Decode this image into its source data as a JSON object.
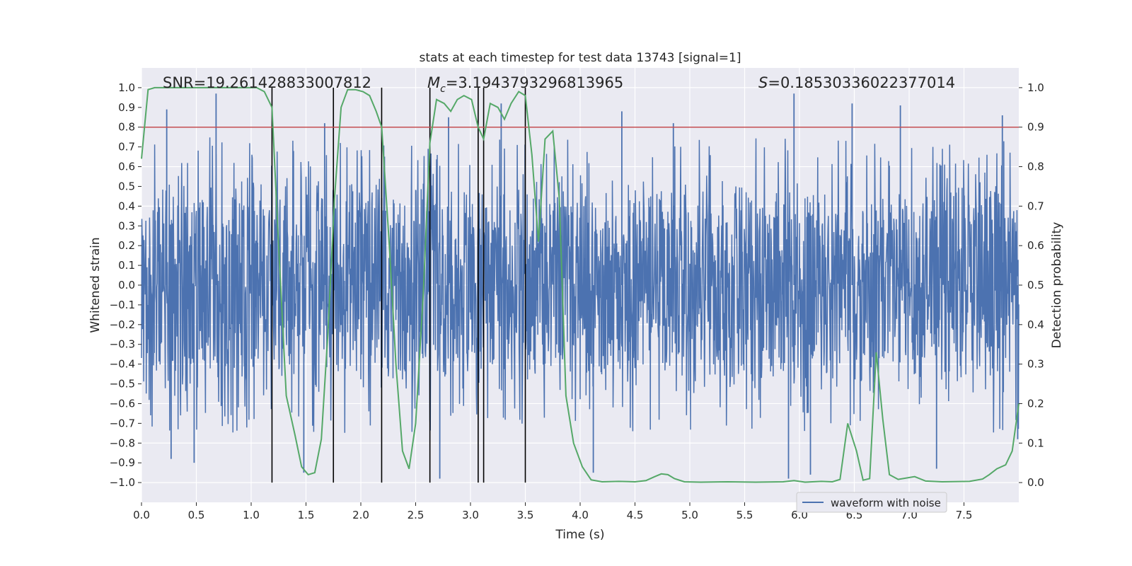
{
  "chart_data": {
    "type": "line",
    "title": "stats at each timestep for test data 13743 [signal=1]",
    "xlabel": "Time (s)",
    "ylabel": "Whitened strain",
    "ylabel_right": "Detection probability",
    "xlim": [
      0.0,
      8.0
    ],
    "ylim": [
      -1.1,
      1.1
    ],
    "ylim_right": [
      -0.05,
      1.05
    ],
    "x_ticks": [
      0.0,
      0.5,
      1.0,
      1.5,
      2.0,
      2.5,
      3.0,
      3.5,
      4.0,
      4.5,
      5.0,
      5.5,
      6.0,
      6.5,
      7.0,
      7.5
    ],
    "x_tick_labels": [
      "0.0",
      "0.5",
      "1.0",
      "1.5",
      "2.0",
      "2.5",
      "3.0",
      "3.5",
      "4.0",
      "4.5",
      "5.0",
      "5.5",
      "6.0",
      "6.5",
      "7.0",
      "7.5"
    ],
    "y_ticks": [
      1.0,
      0.9,
      0.8,
      0.7,
      0.6,
      0.5,
      0.4,
      0.3,
      0.2,
      0.1,
      0.0,
      -0.1,
      -0.2,
      -0.3,
      -0.4,
      -0.5,
      -0.6,
      -0.7,
      -0.8,
      -0.9,
      -1.0
    ],
    "y_tick_labels": [
      "1.0",
      "0.9",
      "0.8",
      "0.7",
      "0.6",
      "0.5",
      "0.4",
      "0.3",
      "0.2",
      "0.1",
      "0.0",
      "−0.1",
      "−0.2",
      "−0.3",
      "−0.4",
      "−0.5",
      "−0.6",
      "−0.7",
      "−0.8",
      "−0.9",
      "−1.0"
    ],
    "y2_ticks": [
      1.0,
      0.9,
      0.8,
      0.7,
      0.6,
      0.5,
      0.4,
      0.3,
      0.2,
      0.1,
      0.0
    ],
    "y2_tick_labels": [
      "1.0",
      "0.9",
      "0.8",
      "0.7",
      "0.6",
      "0.5",
      "0.4",
      "0.3",
      "0.2",
      "0.1",
      "0.0"
    ],
    "grid": true,
    "annotations": {
      "snr": "SNR=19.261428833007812",
      "mc_symbol": "M",
      "mc_sub": "c",
      "mc_value": "=3.1943793296813965",
      "s_symbol": "S",
      "s_value": "=0.18530336022377014"
    },
    "threshold": {
      "axis": "right",
      "value": 0.9,
      "color": "#c44e52"
    },
    "vertical_lines": {
      "x": [
        1.19,
        1.75,
        2.19,
        2.63,
        3.07,
        3.12,
        3.5
      ],
      "ymin": -1.0,
      "ymax": 1.0,
      "color": "#000000"
    },
    "series": [
      {
        "name": "waveform with noise",
        "axis": "left",
        "color": "#4c72b0",
        "kind": "noise",
        "note_typical_envelope": [
          -0.6,
          0.6
        ],
        "peaks": [
          {
            "x": 0.23,
            "y": 0.89
          },
          {
            "x": 0.68,
            "y": 0.97
          },
          {
            "x": 0.48,
            "y": -0.9
          },
          {
            "x": 0.27,
            "y": -0.88
          },
          {
            "x": 1.67,
            "y": 0.82
          },
          {
            "x": 2.8,
            "y": 0.85
          },
          {
            "x": 3.28,
            "y": 0.92
          },
          {
            "x": 4.38,
            "y": 0.88
          },
          {
            "x": 4.85,
            "y": 0.82
          },
          {
            "x": 5.95,
            "y": 0.97
          },
          {
            "x": 6.48,
            "y": 0.92
          },
          {
            "x": 6.92,
            "y": 0.91
          },
          {
            "x": 7.85,
            "y": 0.86
          },
          {
            "x": 1.48,
            "y": -0.95
          },
          {
            "x": 2.72,
            "y": -0.98
          },
          {
            "x": 4.12,
            "y": -0.95
          },
          {
            "x": 5.9,
            "y": -0.98
          },
          {
            "x": 6.1,
            "y": -0.96
          },
          {
            "x": 7.25,
            "y": -0.93
          },
          {
            "x": 7.99,
            "y": -0.78
          }
        ]
      },
      {
        "name": "",
        "axis": "right",
        "color": "#55a868",
        "x": [
          0.0,
          0.06,
          0.12,
          0.3,
          0.5,
          0.7,
          0.9,
          1.05,
          1.12,
          1.19,
          1.25,
          1.32,
          1.4,
          1.46,
          1.52,
          1.58,
          1.64,
          1.7,
          1.76,
          1.82,
          1.88,
          1.95,
          2.02,
          2.08,
          2.14,
          2.19,
          2.26,
          2.32,
          2.38,
          2.44,
          2.5,
          2.57,
          2.63,
          2.69,
          2.76,
          2.82,
          2.88,
          2.94,
          3.01,
          3.07,
          3.12,
          3.18,
          3.25,
          3.31,
          3.37,
          3.44,
          3.5,
          3.56,
          3.62,
          3.68,
          3.75,
          3.81,
          3.87,
          3.94,
          4.02,
          4.1,
          4.2,
          4.35,
          4.5,
          4.6,
          4.68,
          4.74,
          4.8,
          4.86,
          4.95,
          5.1,
          5.35,
          5.6,
          5.85,
          5.95,
          6.05,
          6.2,
          6.3,
          6.37,
          6.44,
          6.52,
          6.58,
          6.64,
          6.7,
          6.76,
          6.82,
          6.9,
          7.05,
          7.15,
          7.3,
          7.55,
          7.67,
          7.73,
          7.8,
          7.88,
          7.94,
          8.0
        ],
        "y": [
          0.82,
          0.995,
          1.0,
          1.0,
          1.0,
          1.0,
          1.0,
          1.0,
          0.99,
          0.95,
          0.6,
          0.22,
          0.12,
          0.04,
          0.02,
          0.025,
          0.11,
          0.38,
          0.72,
          0.95,
          0.995,
          0.995,
          0.99,
          0.98,
          0.94,
          0.9,
          0.6,
          0.3,
          0.08,
          0.035,
          0.15,
          0.48,
          0.86,
          0.97,
          0.96,
          0.94,
          0.97,
          0.98,
          0.97,
          0.9,
          0.87,
          0.96,
          0.95,
          0.92,
          0.96,
          0.99,
          0.98,
          0.83,
          0.61,
          0.87,
          0.89,
          0.72,
          0.22,
          0.1,
          0.04,
          0.007,
          0.002,
          0.003,
          0.002,
          0.005,
          0.015,
          0.022,
          0.02,
          0.01,
          0.002,
          0.001,
          0.002,
          0.001,
          0.002,
          0.005,
          0.001,
          0.003,
          0.002,
          0.008,
          0.15,
          0.08,
          0.006,
          0.01,
          0.33,
          0.16,
          0.02,
          0.008,
          0.015,
          0.004,
          0.002,
          0.003,
          0.009,
          0.02,
          0.035,
          0.045,
          0.08,
          0.2
        ]
      }
    ],
    "legend": {
      "position": "lower-right",
      "entries": [
        "waveform with noise"
      ]
    }
  }
}
